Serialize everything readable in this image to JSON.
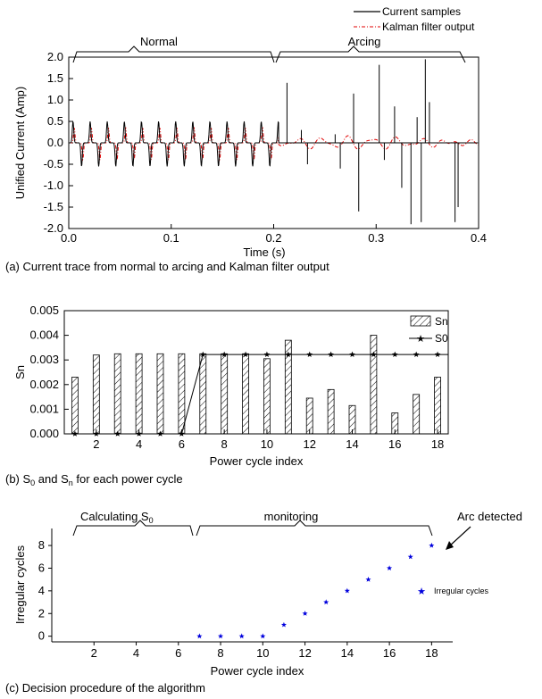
{
  "chart_data": [
    {
      "type": "line",
      "caption": "(a) Current trace from normal to arcing and Kalman filter output",
      "xlabel": "Time (s)",
      "ylabel": "Unified Current (Amp)",
      "xlim": [
        0.0,
        0.4
      ],
      "ylim": [
        -2.0,
        2.0
      ],
      "xticks": [
        "0.0",
        "0.1",
        "0.2",
        "0.3",
        "0.4"
      ],
      "yticks": [
        "-2.0",
        "-1.5",
        "-1.0",
        "-0.5",
        "0.0",
        "0.5",
        "1.0",
        "1.5",
        "2.0"
      ],
      "grid": false,
      "legend_position": "top-right",
      "region_labels": [
        {
          "text": "Normal",
          "x_start": 0.007,
          "x_end": 0.2
        },
        {
          "text": "Arcing",
          "x_start": 0.21,
          "x_end": 0.385
        }
      ],
      "series": [
        {
          "name": "Current samples",
          "color": "#000000",
          "style": "solid",
          "normal_cycle_period": 0.0167,
          "normal_peak_pos": 0.5,
          "normal_peak_neg": -0.55,
          "spikes": [
            {
              "x": 0.213,
              "y": 1.4
            },
            {
              "x": 0.227,
              "y": 0.3
            },
            {
              "x": 0.233,
              "y": -0.5
            },
            {
              "x": 0.26,
              "y": 0.2
            },
            {
              "x": 0.265,
              "y": -0.6
            },
            {
              "x": 0.278,
              "y": 1.15
            },
            {
              "x": 0.283,
              "y": -1.6
            },
            {
              "x": 0.303,
              "y": 1.82
            },
            {
              "x": 0.308,
              "y": -0.4
            },
            {
              "x": 0.318,
              "y": 0.85
            },
            {
              "x": 0.325,
              "y": -1.05
            },
            {
              "x": 0.334,
              "y": -1.9
            },
            {
              "x": 0.34,
              "y": 0.6
            },
            {
              "x": 0.344,
              "y": -1.85
            },
            {
              "x": 0.348,
              "y": 1.95
            },
            {
              "x": 0.352,
              "y": 0.95
            },
            {
              "x": 0.377,
              "y": -1.85
            },
            {
              "x": 0.38,
              "y": -1.5
            }
          ]
        },
        {
          "name": "Kalman filter output",
          "color": "#e00000",
          "style": "dash-dot",
          "normal_peak_pos": 0.35,
          "normal_peak_neg": -0.4
        }
      ]
    },
    {
      "type": "bar",
      "caption_parts": [
        "(b) S",
        "0",
        " and S",
        "n",
        " for each power cycle"
      ],
      "xlabel": "Power cycle index",
      "ylabel": "Sn",
      "xlim": [
        0.5,
        18.5
      ],
      "ylim": [
        0.0,
        0.005
      ],
      "xticks": [
        "2",
        "4",
        "6",
        "8",
        "10",
        "12",
        "14",
        "16",
        "18"
      ],
      "yticks": [
        "0.000",
        "0.001",
        "0.002",
        "0.003",
        "0.004",
        "0.005"
      ],
      "grid": false,
      "legend_position": "top-right",
      "categories": [
        1,
        2,
        3,
        4,
        5,
        6,
        7,
        8,
        9,
        10,
        11,
        12,
        13,
        14,
        15,
        16,
        17,
        18
      ],
      "series": [
        {
          "name": "Sn",
          "type": "bar",
          "pattern": "hatched",
          "values": [
            0.0023,
            0.0032,
            0.00325,
            0.00325,
            0.00325,
            0.00325,
            0.00325,
            0.00325,
            0.00325,
            0.00305,
            0.0038,
            0.00145,
            0.0018,
            0.00115,
            0.004,
            0.00085,
            0.0016,
            0.0023
          ]
        },
        {
          "name": "S0",
          "type": "line",
          "marker": "star",
          "values": [
            0,
            0,
            0,
            0,
            0,
            0,
            0.00322,
            0.00322,
            0.00322,
            0.00322,
            0.00322,
            0.00322,
            0.00322,
            0.00322,
            0.00322,
            0.00322,
            0.00322,
            0.00322
          ]
        }
      ]
    },
    {
      "type": "scatter",
      "caption": "(c) Decision procedure of the algorithm",
      "xlabel": "Power cycle index",
      "ylabel": "Irregular cycles",
      "xlim": [
        0,
        19
      ],
      "ylim": [
        -0.5,
        9.5
      ],
      "xticks": [
        "2",
        "4",
        "6",
        "8",
        "10",
        "12",
        "14",
        "16",
        "18"
      ],
      "yticks": [
        "0",
        "2",
        "4",
        "6",
        "8"
      ],
      "grid": false,
      "legend_position": "right",
      "region_labels": [
        {
          "text_parts": [
            "Calculating S",
            "0"
          ],
          "x_start": 1,
          "x_end": 6.4
        },
        {
          "text": "monitoring",
          "x_start": 6.6,
          "x_end": 17.6
        }
      ],
      "annotation": {
        "text": "Arc detected",
        "x": 18,
        "y": 8
      },
      "series": [
        {
          "name": "Irregular cycles",
          "color": "#0000dd",
          "marker": "star",
          "x": [
            7,
            8,
            9,
            10,
            11,
            12,
            13,
            14,
            15,
            16,
            17,
            18
          ],
          "y": [
            0,
            0,
            0,
            0,
            1,
            2,
            3,
            4,
            5,
            6,
            7,
            8
          ]
        }
      ]
    }
  ]
}
